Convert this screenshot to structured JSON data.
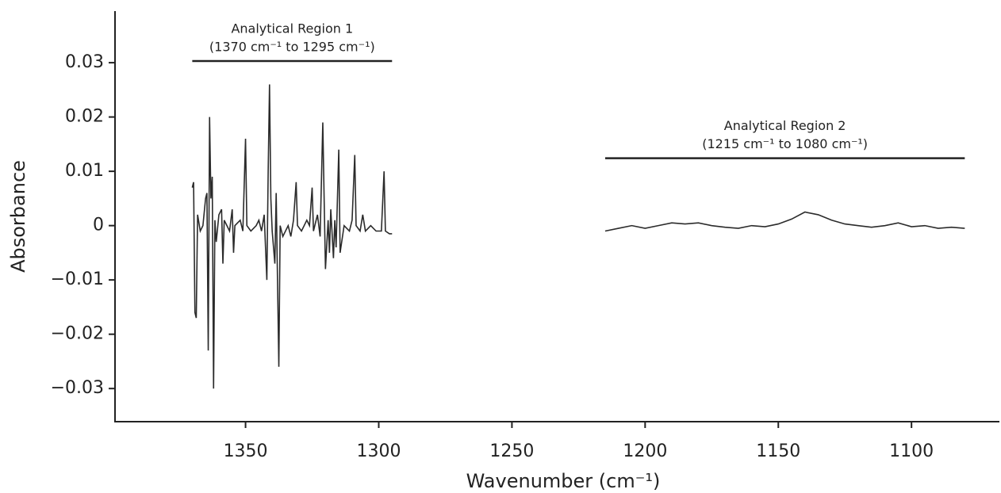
{
  "chart_data": {
    "type": "line",
    "x_label": "Wavenumber (cm⁻¹)",
    "y_label": "Absorbance",
    "xlim": [
      1399,
      1067
    ],
    "xticks": [
      1350,
      1300,
      1250,
      1200,
      1150,
      1100
    ],
    "ylim": [
      -0.0361,
      0.0395
    ],
    "yticks": [
      {
        "value": -0.03,
        "label": "−0.03"
      },
      {
        "value": -0.02,
        "label": "−0.02"
      },
      {
        "value": -0.01,
        "label": "−0.01"
      },
      0,
      0.01,
      0.02,
      0.03
    ],
    "series": [
      {
        "name": "Analytical Region 1",
        "color": "#2b2b2b",
        "x": [
          1370,
          1369.5,
          1369,
          1368.5,
          1368,
          1367,
          1366,
          1365,
          1364.5,
          1364,
          1363.5,
          1363,
          1362.5,
          1362,
          1361.5,
          1361,
          1360,
          1359,
          1358.5,
          1358,
          1357,
          1356,
          1355,
          1354.5,
          1354,
          1352,
          1351,
          1350,
          1349.5,
          1348,
          1346,
          1345,
          1344,
          1343,
          1342,
          1341.5,
          1341,
          1340.5,
          1340,
          1339,
          1338.5,
          1338,
          1337.5,
          1337,
          1336,
          1334,
          1333,
          1332,
          1331,
          1330.5,
          1329,
          1327,
          1326,
          1325,
          1324.5,
          1323,
          1322,
          1321,
          1320.5,
          1320,
          1319,
          1318.5,
          1318,
          1317,
          1316.5,
          1316,
          1315,
          1314.5,
          1313,
          1311,
          1310,
          1309,
          1308.5,
          1307,
          1306,
          1305,
          1303,
          1301,
          1299,
          1298,
          1297.5,
          1296,
          1295
        ],
        "values": [
          0.007,
          0.008,
          -0.016,
          -0.017,
          0.002,
          -0.001,
          0,
          0.005,
          0.006,
          -0.023,
          0.02,
          0.005,
          0.009,
          -0.03,
          0.001,
          -0.003,
          0.002,
          0.003,
          -0.007,
          0.001,
          0,
          -0.001,
          0.003,
          -0.005,
          0,
          0.001,
          -0.001,
          0.016,
          0,
          -0.001,
          0,
          0.001,
          -0.001,
          0.002,
          -0.01,
          0.01,
          0.026,
          0.005,
          -0.001,
          -0.007,
          0.006,
          -0.01,
          -0.026,
          0,
          -0.002,
          0,
          -0.002,
          0.001,
          0.008,
          0,
          -0.001,
          0.001,
          0,
          0.007,
          -0.001,
          0.002,
          -0.002,
          0.019,
          0.005,
          -0.008,
          0.001,
          -0.005,
          0.003,
          -0.006,
          0.001,
          -0.004,
          0.014,
          -0.005,
          0,
          -0.001,
          0.001,
          0.013,
          0,
          -0.001,
          0.002,
          -0.001,
          0,
          -0.001,
          -0.001,
          0.01,
          -0.001,
          -0.0015,
          -0.0015
        ]
      },
      {
        "name": "Analytical Region 2",
        "color": "#2b2b2b",
        "x": [
          1215,
          1210,
          1205,
          1200,
          1195,
          1190,
          1185,
          1180,
          1175,
          1170,
          1165,
          1160,
          1155,
          1150,
          1145,
          1140,
          1135,
          1130,
          1125,
          1120,
          1115,
          1110,
          1105,
          1100,
          1095,
          1090,
          1085,
          1080
        ],
        "values": [
          -0.001,
          -0.0005,
          0,
          -0.0005,
          0,
          0.0005,
          0.0003,
          0.0005,
          0,
          -0.0003,
          -0.0005,
          0,
          -0.0002,
          0.0003,
          0.0012,
          0.0025,
          0.002,
          0.001,
          0.0003,
          0,
          -0.0003,
          0,
          0.0005,
          -0.0002,
          0,
          -0.0005,
          -0.0003,
          -0.0005
        ]
      }
    ],
    "annotations": [
      {
        "text": "Analytical Region 1",
        "subtext": "(1370 cm⁻¹ to 1295 cm⁻¹)",
        "range": [
          1370,
          1295
        ],
        "y": 0.0303
      },
      {
        "text": "Analytical Region 2",
        "subtext": "(1215 cm⁻¹ to 1080 cm⁻¹)",
        "range": [
          1215,
          1080
        ],
        "y": 0.0124
      }
    ]
  }
}
